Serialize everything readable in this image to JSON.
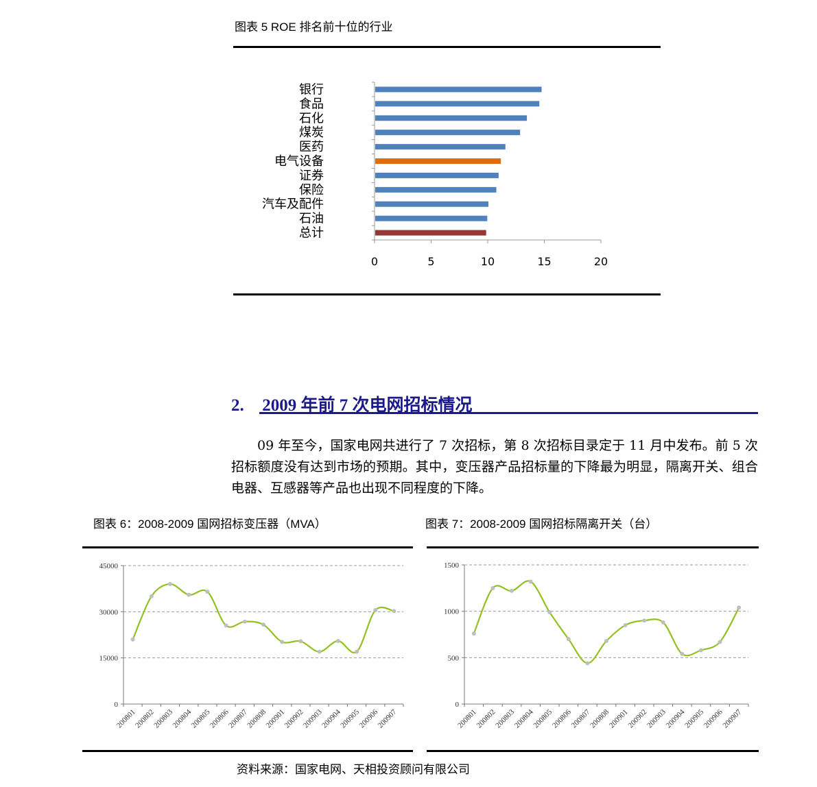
{
  "figure5": {
    "title": "图表 5 ROE 排名前十位的行业"
  },
  "section": {
    "number": "2.",
    "title": "2009 年前 7 次电网招标情况",
    "paragraph": "09 年至今，国家电网共进行了 7 次招标，第 8 次招标目录定于 11 月中发布。前 5 次招标额度没有达到市场的预期。其中，变压器产品招标量的下降最为明显，隔离开关、组合电器、互感器等产品也出现不同程度的下降。"
  },
  "figure6": {
    "title": "图表 6：2008-2009 国网招标变压器（MVA）"
  },
  "figure7": {
    "title": "图表 7：2008-2009 国网招标隔离开关（台）"
  },
  "source": {
    "text": "资料来源：国家电网、天相投资顾问有限公司"
  },
  "colors": {
    "bar_blue": "#4f81bd",
    "bar_orange": "#e46c0a",
    "bar_red": "#953735",
    "line_green": "#92c01f",
    "marker_gray": "#bfbfbf",
    "heading_blue": "#1a1a8c"
  },
  "chart_data": [
    {
      "id": "fig5",
      "type": "bar",
      "orientation": "horizontal",
      "categories": [
        "银行",
        "食品",
        "石化",
        "煤炭",
        "医药",
        "电气设备",
        "证券",
        "保险",
        "汽车及配件",
        "石油",
        "总计"
      ],
      "values": [
        14.7,
        14.5,
        13.4,
        12.8,
        11.5,
        11.1,
        10.9,
        10.7,
        10.0,
        9.9,
        9.8
      ],
      "highlight": {
        "电气设备": "orange",
        "总计": "red"
      },
      "xlim": [
        0,
        20
      ],
      "xticks": [
        "0",
        "5",
        "10",
        "15",
        "20"
      ],
      "grid": false,
      "legend": "none"
    },
    {
      "id": "fig6",
      "type": "line",
      "categories": [
        "200801",
        "200802",
        "200803",
        "200804",
        "200805",
        "200806",
        "200807",
        "200808",
        "200901",
        "200902",
        "200903",
        "200904",
        "200905",
        "200906",
        "200907"
      ],
      "values": [
        21000,
        35000,
        39000,
        35500,
        36500,
        25500,
        26800,
        25800,
        20200,
        20400,
        17000,
        20500,
        17000,
        30500,
        30200
      ],
      "ylim": [
        0,
        45000
      ],
      "yticks": [
        "0",
        "15000",
        "30000",
        "45000"
      ],
      "grid": "horizontal dashed",
      "legend": "none"
    },
    {
      "id": "fig7",
      "type": "line",
      "categories": [
        "200801",
        "200802",
        "200803",
        "200804",
        "200805",
        "200806",
        "200807",
        "200808",
        "200901",
        "200902",
        "200903",
        "200904",
        "200905",
        "200906",
        "200907"
      ],
      "values": [
        760,
        1250,
        1220,
        1320,
        990,
        700,
        440,
        680,
        850,
        900,
        880,
        540,
        580,
        670,
        1040
      ],
      "ylim": [
        0,
        1500
      ],
      "yticks": [
        "0",
        "500",
        "1000",
        "1500"
      ],
      "grid": "horizontal dashed",
      "legend": "none"
    }
  ]
}
